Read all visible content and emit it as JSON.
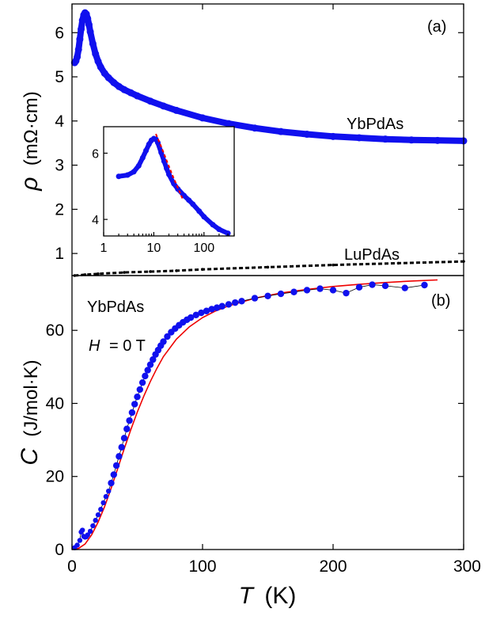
{
  "colors": {
    "yb_series": "#1010ee",
    "lu_series": "#000000",
    "fit": "#ee0000",
    "frame": "#000000"
  },
  "chart_data": [
    {
      "panel": "(a)",
      "type": "line",
      "ylabel_symbol": "ρ",
      "ylabel_unit": "(mΩ·cm)",
      "xlim": [
        0,
        300
      ],
      "ylim": [
        0.5,
        6.65
      ],
      "yticks": [
        "1",
        "2",
        "3",
        "4",
        "5",
        "6"
      ],
      "grid": false,
      "series": [
        {
          "name": "YbPdAs",
          "x": [
            2,
            3,
            4,
            5,
            6,
            7,
            8,
            9,
            10,
            11,
            12,
            13,
            14,
            16,
            18,
            20,
            22,
            25,
            28,
            32,
            36,
            40,
            45,
            50,
            60,
            70,
            80,
            100,
            120,
            140,
            160,
            180,
            200,
            220,
            240,
            260,
            280,
            300
          ],
          "values": [
            5.32,
            5.36,
            5.45,
            5.62,
            5.85,
            6.08,
            6.28,
            6.4,
            6.45,
            6.42,
            6.32,
            6.18,
            6.02,
            5.75,
            5.52,
            5.35,
            5.22,
            5.08,
            4.98,
            4.87,
            4.78,
            4.71,
            4.64,
            4.57,
            4.45,
            4.34,
            4.24,
            4.07,
            3.94,
            3.84,
            3.76,
            3.7,
            3.65,
            3.62,
            3.59,
            3.57,
            3.56,
            3.55
          ]
        },
        {
          "name": "LuPdAs",
          "x": [
            2,
            10,
            20,
            40,
            60,
            80,
            100,
            150,
            200,
            250,
            300
          ],
          "values": [
            0.5,
            0.52,
            0.54,
            0.57,
            0.59,
            0.61,
            0.64,
            0.69,
            0.74,
            0.78,
            0.82
          ]
        }
      ],
      "label": "(a)",
      "inset": {
        "type": "scatter",
        "xscale": "log",
        "xlim": [
          1,
          400
        ],
        "ylim": [
          3.5,
          6.8
        ],
        "xticks": [
          "1",
          "10",
          "100"
        ],
        "yticks": [
          "4",
          "6"
        ],
        "series": [
          {
            "x": [
              2,
              3,
              4,
              5,
              6,
              7,
              8,
              9,
              10,
              11,
              12,
              14,
              16,
              18,
              20,
              25,
              30,
              40,
              50,
              60,
              80,
              100,
              150,
              200,
              300
            ],
            "values": [
              5.3,
              5.34,
              5.44,
              5.62,
              5.86,
              6.08,
              6.27,
              6.39,
              6.44,
              6.42,
              6.32,
              6.02,
              5.76,
              5.54,
              5.36,
              5.08,
              4.92,
              4.72,
              4.58,
              4.46,
              4.25,
              4.08,
              3.84,
              3.7,
              3.58
            ]
          }
        ],
        "fit": {
          "x": [
            11,
            14,
            18,
            24,
            30,
            38
          ],
          "values": [
            6.58,
            6.2,
            5.78,
            5.3,
            4.96,
            4.6
          ]
        }
      }
    },
    {
      "panel": "(b)",
      "type": "scatter",
      "ylabel_symbol": "C",
      "ylabel_unit": "(J/mol·K)",
      "xlabel_symbol": "T",
      "xlabel_unit": "(K)",
      "xlim": [
        0,
        300
      ],
      "ylim": [
        0,
        75
      ],
      "xticks": [
        "0",
        "100",
        "200",
        "300"
      ],
      "yticks": [
        "0",
        "20",
        "40",
        "60"
      ],
      "grid": false,
      "label": "(b)",
      "annotations": {
        "compound": "YbPdAs",
        "field_symbol": "H",
        "field_value": "= 0 T"
      },
      "series": [
        {
          "name": "YbPdAs",
          "x": [
            2,
            4,
            6,
            7,
            8,
            9,
            10,
            11,
            12,
            14,
            16,
            18,
            20,
            22,
            24,
            26,
            28,
            30,
            32,
            34,
            36,
            38,
            40,
            42,
            44,
            46,
            48,
            50,
            52,
            54,
            56,
            58,
            60,
            62,
            64,
            66,
            68,
            70,
            73,
            76,
            79,
            82,
            85,
            88,
            91,
            95,
            99,
            103,
            107,
            111,
            115,
            120,
            125,
            130,
            140,
            150,
            160,
            170,
            180,
            190,
            200,
            210,
            220,
            230,
            240,
            255,
            270
          ],
          "values": [
            0.5,
            1.2,
            2.5,
            4.8,
            5.3,
            3.6,
            3.4,
            3.5,
            4.0,
            5.0,
            6.5,
            8.0,
            9.5,
            11.0,
            12.8,
            14.5,
            16.0,
            18.2,
            20.5,
            23.0,
            25.5,
            28.0,
            30.5,
            33.0,
            35.3,
            37.5,
            39.8,
            41.8,
            43.8,
            45.7,
            47.5,
            49.1,
            50.6,
            52.0,
            53.4,
            54.6,
            55.8,
            56.9,
            58.3,
            59.5,
            60.5,
            61.4,
            62.2,
            62.9,
            63.5,
            64.2,
            64.8,
            65.3,
            65.8,
            66.2,
            66.6,
            67.1,
            67.6,
            68.0,
            68.8,
            69.4,
            70.0,
            70.5,
            71.0,
            71.4,
            71.0,
            70.2,
            71.8,
            72.5,
            72.2,
            71.6,
            72.4
          ]
        }
      ],
      "fit": {
        "x": [
          0,
          5,
          10,
          15,
          20,
          25,
          30,
          35,
          40,
          45,
          50,
          55,
          60,
          65,
          70,
          80,
          90,
          100,
          110,
          120,
          140,
          160,
          180,
          200,
          220,
          240,
          260,
          280
        ],
        "values": [
          0,
          0.3,
          1.5,
          4,
          7.5,
          11.8,
          16.8,
          22.2,
          27.6,
          32.8,
          37.6,
          42.0,
          46.0,
          49.6,
          52.8,
          57.6,
          61.0,
          63.5,
          65.3,
          66.7,
          68.8,
          70.2,
          71.2,
          72.0,
          72.6,
          73.1,
          73.5,
          73.8
        ]
      }
    }
  ]
}
